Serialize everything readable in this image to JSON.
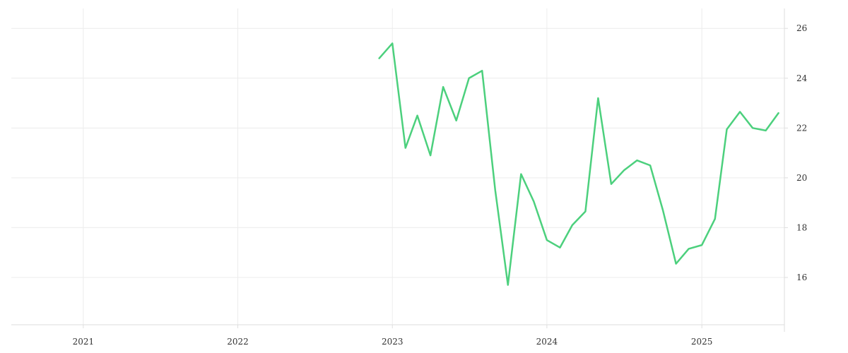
{
  "chart_data": {
    "type": "line",
    "title": "",
    "xlabel": "",
    "ylabel": "",
    "x_axis": {
      "min": "2020-07-15",
      "max": "2025-07-15",
      "ticks": [
        {
          "date": "2021-01-01",
          "label": "2021"
        },
        {
          "date": "2022-01-01",
          "label": "2022"
        },
        {
          "date": "2023-01-01",
          "label": "2023"
        },
        {
          "date": "2024-01-01",
          "label": "2024"
        },
        {
          "date": "2025-01-01",
          "label": "2025"
        }
      ]
    },
    "y_axis": {
      "position": "right",
      "min": 14.1,
      "max": 26.8,
      "ticks": [
        16,
        18,
        20,
        22,
        24,
        26
      ]
    },
    "grid": true,
    "series": [
      {
        "color": "#4cd07d",
        "points": [
          {
            "x": "2022-12-01",
            "y": 24.8
          },
          {
            "x": "2023-01-01",
            "y": 25.4
          },
          {
            "x": "2023-02-01",
            "y": 21.2
          },
          {
            "x": "2023-03-01",
            "y": 22.5
          },
          {
            "x": "2023-04-01",
            "y": 20.9
          },
          {
            "x": "2023-05-01",
            "y": 23.65
          },
          {
            "x": "2023-06-01",
            "y": 22.3
          },
          {
            "x": "2023-07-01",
            "y": 24.0
          },
          {
            "x": "2023-08-01",
            "y": 24.3
          },
          {
            "x": "2023-09-01",
            "y": 19.5
          },
          {
            "x": "2023-10-01",
            "y": 15.7
          },
          {
            "x": "2023-11-01",
            "y": 20.15
          },
          {
            "x": "2023-12-01",
            "y": 19.05
          },
          {
            "x": "2024-01-01",
            "y": 17.5
          },
          {
            "x": "2024-02-01",
            "y": 17.2
          },
          {
            "x": "2024-03-01",
            "y": 18.1
          },
          {
            "x": "2024-04-01",
            "y": 18.65
          },
          {
            "x": "2024-05-01",
            "y": 23.2
          },
          {
            "x": "2024-06-01",
            "y": 19.75
          },
          {
            "x": "2024-07-01",
            "y": 20.3
          },
          {
            "x": "2024-08-01",
            "y": 20.7
          },
          {
            "x": "2024-09-01",
            "y": 20.5
          },
          {
            "x": "2024-10-01",
            "y": 18.7
          },
          {
            "x": "2024-11-01",
            "y": 16.55
          },
          {
            "x": "2024-12-01",
            "y": 17.15
          },
          {
            "x": "2025-01-01",
            "y": 17.3
          },
          {
            "x": "2025-02-01",
            "y": 18.35
          },
          {
            "x": "2025-03-01",
            "y": 21.95
          },
          {
            "x": "2025-04-01",
            "y": 22.65
          },
          {
            "x": "2025-05-01",
            "y": 22.0
          },
          {
            "x": "2025-06-01",
            "y": 21.9
          },
          {
            "x": "2025-07-01",
            "y": 22.6
          }
        ]
      }
    ]
  }
}
